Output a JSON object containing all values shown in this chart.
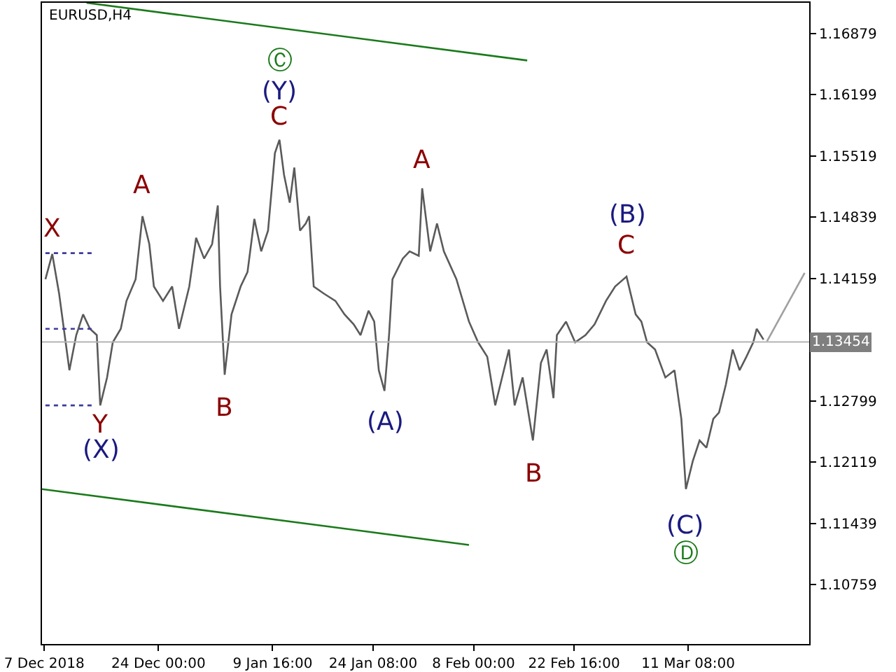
{
  "chart_data": {
    "type": "line",
    "title": "EURUSD,H4",
    "xlim": [
      "2018-12-07T00:00",
      "2019-03-29T00:00"
    ],
    "xticks": [
      {
        "value": "2018-12-07T08:00",
        "label": "7 Dec 2018"
      },
      {
        "value": "2018-12-24T00:00",
        "label": "24 Dec 00:00"
      },
      {
        "value": "2019-01-09T16:00",
        "label": "9 Jan 16:00"
      },
      {
        "value": "2019-01-24T08:00",
        "label": "24 Jan 08:00"
      },
      {
        "value": "2019-02-08T00:00",
        "label": "8 Feb 00:00"
      },
      {
        "value": "2019-02-22T16:00",
        "label": "22 Feb 16:00"
      },
      {
        "value": "2019-03-11T08:00",
        "label": "11 Mar 08:00"
      }
    ],
    "ylim": [
      1.101,
      1.1722
    ],
    "yticks": [
      1.16879,
      1.16199,
      1.15519,
      1.14839,
      1.14159,
      1.12799,
      1.12119,
      1.11439,
      1.10759
    ],
    "grid": false,
    "series": [
      {
        "color": "#5a5a5a",
        "x": [
          "2018-12-07T12:00",
          "2018-12-08T12:00",
          "2018-12-09T12:00",
          "2018-12-11T00:00",
          "2018-12-12T00:00",
          "2018-12-13T00:00",
          "2018-12-14T00:00",
          "2018-12-15T00:00",
          "2018-12-15T12:00",
          "2018-12-16T12:00",
          "2018-12-17T08:00",
          "2018-12-18T12:00",
          "2018-12-19T08:00",
          "2018-12-20T16:00",
          "2018-12-21T16:00",
          "2018-12-22T16:00",
          "2018-12-23T08:00",
          "2018-12-24T16:00",
          "2018-12-26T00:00",
          "2018-12-27T00:00",
          "2018-12-28T12:00",
          "2018-12-29T12:00",
          "2018-12-30T16:00",
          "2018-12-31T20:00",
          "2019-01-01T16:00",
          "2019-01-02T00:00",
          "2019-01-02T16:00",
          "2019-01-03T16:00",
          "2019-01-05T00:00",
          "2019-01-06T00:00",
          "2019-01-07T00:00",
          "2019-01-08T00:00",
          "2019-01-09T00:00",
          "2019-01-10T00:00",
          "2019-01-10T16:00",
          "2019-01-11T08:00",
          "2019-01-12T04:00",
          "2019-01-12T20:00",
          "2019-01-13T16:00",
          "2019-01-14T12:00",
          "2019-01-15T00:00",
          "2019-01-15T16:00",
          "2019-01-17T04:00",
          "2019-01-18T20:00",
          "2019-01-20T04:00",
          "2019-01-21T12:00",
          "2019-01-22T12:00",
          "2019-01-23T16:00",
          "2019-01-24T12:00",
          "2019-01-25T04:00",
          "2019-01-26T00:00",
          "2019-01-26T16:00",
          "2019-01-27T04:00",
          "2019-01-28T16:00",
          "2019-01-29T16:00",
          "2019-01-31T00:00",
          "2019-01-31T12:00",
          "2019-02-01T16:00",
          "2019-02-02T16:00",
          "2019-02-03T16:00",
          "2019-02-05T12:00",
          "2019-02-07T08:00",
          "2019-02-08T16:00",
          "2019-02-10T00:00",
          "2019-02-11T04:00",
          "2019-02-12T04:00",
          "2019-02-13T04:00",
          "2019-02-14T00:00",
          "2019-02-15T04:00",
          "2019-02-16T16:00",
          "2019-02-17T20:00",
          "2019-02-18T16:00",
          "2019-02-19T16:00",
          "2019-02-20T04:00",
          "2019-02-21T12:00",
          "2019-02-22T20:00",
          "2019-02-24T08:00",
          "2019-02-25T16:00",
          "2019-02-27T08:00",
          "2019-02-28T16:00",
          "2019-03-02T08:00",
          "2019-03-03T16:00",
          "2019-03-04T12:00",
          "2019-03-05T08:00",
          "2019-03-06T12:00",
          "2019-03-08T00:00",
          "2019-03-09T08:00",
          "2019-03-10T08:00",
          "2019-03-11T00:00",
          "2019-03-12T00:00",
          "2019-03-13T00:00",
          "2019-03-14T00:00",
          "2019-03-15T00:00",
          "2019-03-15T20:00",
          "2019-03-16T20:00",
          "2019-03-17T20:00",
          "2019-03-18T20:00",
          "2019-03-19T20:00",
          "2019-03-20T20:00",
          "2019-03-21T08:00",
          "2019-03-22T08:00"
        ],
        "values": [
          1.1415,
          1.1443,
          1.1399,
          1.1314,
          1.1353,
          1.1376,
          1.136,
          1.1353,
          1.1275,
          1.1306,
          1.1345,
          1.136,
          1.1391,
          1.1415,
          1.1485,
          1.1454,
          1.1407,
          1.1391,
          1.1407,
          1.136,
          1.1407,
          1.1461,
          1.1438,
          1.1454,
          1.1497,
          1.1407,
          1.1309,
          1.1376,
          1.1407,
          1.1423,
          1.1482,
          1.1446,
          1.1469,
          1.1555,
          1.157,
          1.1531,
          1.15,
          1.1539,
          1.1469,
          1.1477,
          1.1485,
          1.1407,
          1.1399,
          1.1391,
          1.1376,
          1.1365,
          1.1353,
          1.138,
          1.1368,
          1.1314,
          1.1291,
          1.1353,
          1.1415,
          1.1438,
          1.1446,
          1.1441,
          1.1516,
          1.1446,
          1.1477,
          1.1446,
          1.1415,
          1.1368,
          1.1345,
          1.1329,
          1.1275,
          1.1306,
          1.1337,
          1.1275,
          1.1306,
          1.1236,
          1.1322,
          1.1337,
          1.1283,
          1.1353,
          1.1368,
          1.1345,
          1.1353,
          1.1365,
          1.1391,
          1.1407,
          1.1418,
          1.1376,
          1.1368,
          1.1345,
          1.1337,
          1.1306,
          1.1314,
          1.126,
          1.1182,
          1.1213,
          1.1236,
          1.1228,
          1.126,
          1.1267,
          1.1298,
          1.1337,
          1.1314,
          1.1329,
          1.1345,
          1.136,
          1.1348
        ]
      },
      {
        "color": "#a0a0a0",
        "x": [
          "2019-03-22T20:00",
          "2019-03-28T08:00"
        ],
        "values": [
          1.1346,
          1.1422
        ]
      },
      {
        "color": "#1a7a1a",
        "x": [
          "2018-12-13T12:00",
          "2019-02-15T20:00"
        ],
        "values": [
          1.1722,
          1.1658
        ]
      },
      {
        "color": "#1a7a1a",
        "x": [
          "2018-12-07T00:00",
          "2019-02-07T08:00"
        ],
        "values": [
          1.1182,
          1.112
        ]
      },
      {
        "color": "#3c3c9c",
        "line_style": "dotted",
        "x": [
          "2018-12-07T12:00",
          "2018-12-14T12:00"
        ],
        "values": [
          1.1444,
          1.1444
        ]
      },
      {
        "color": "#3c3c9c",
        "line_style": "dotted",
        "x": [
          "2018-12-07T12:00",
          "2018-12-14T12:00"
        ],
        "values": [
          1.136,
          1.136
        ]
      },
      {
        "color": "#3c3c9c",
        "line_style": "dotted",
        "x": [
          "2018-12-07T12:00",
          "2018-12-14T12:00"
        ],
        "values": [
          1.1275,
          1.1275
        ]
      }
    ],
    "ref_lines": [
      {
        "axis": "y",
        "value": 1.13454,
        "label": "1.13454",
        "color": "#b4b4b4"
      }
    ],
    "annotations": [
      {
        "text": "X",
        "x": "2018-12-08T12:00",
        "y": 1.1443
      },
      {
        "text": "Y",
        "x": "2018-12-15T12:00",
        "y": 1.1275
      },
      {
        "text": "(X)",
        "x": "2018-12-15T12:00",
        "y": 1.1275
      },
      {
        "text": "A",
        "x": "2018-12-21T16:00",
        "y": 1.1485
      },
      {
        "text": "B",
        "x": "2019-01-02T16:00",
        "y": 1.1309
      },
      {
        "text": "Ⓒ",
        "x": "2019-01-10T16:00",
        "y": 1.157
      },
      {
        "text": "(Y)",
        "x": "2019-01-10T16:00",
        "y": 1.157
      },
      {
        "text": "C",
        "x": "2019-01-10T16:00",
        "y": 1.157
      },
      {
        "text": "(A)",
        "x": "2019-01-26T00:00",
        "y": 1.1291
      },
      {
        "text": "A",
        "x": "2019-01-31T12:00",
        "y": 1.1516
      },
      {
        "text": "B",
        "x": "2019-02-16T16:00",
        "y": 1.1236
      },
      {
        "text": "(B)",
        "x": "2019-03-02T08:00",
        "y": 1.1418
      },
      {
        "text": "C",
        "x": "2019-03-02T08:00",
        "y": 1.1418
      },
      {
        "text": "(C)",
        "x": "2019-03-11T00:00",
        "y": 1.1182
      },
      {
        "text": "Ⓓ",
        "x": "2019-03-11T00:00",
        "y": 1.1182
      }
    ]
  }
}
